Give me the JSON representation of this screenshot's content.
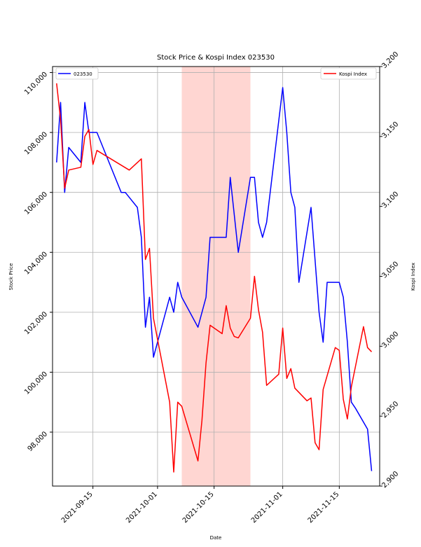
{
  "chart_data": {
    "type": "line",
    "title": "Stock Price & Kospi Index 023530",
    "xlabel": "Date",
    "ylabel_left": "Stock Price",
    "ylabel_right": "Kospi Index",
    "xlim": [
      "2021-09-05",
      "2021-11-25"
    ],
    "ylim_left": [
      96200,
      110200
    ],
    "ylim_right": [
      2900,
      3200
    ],
    "x_ticks": [
      {
        "date": "2021-09-15",
        "label": "2021-09-15"
      },
      {
        "date": "2021-10-01",
        "label": "2021-10-01"
      },
      {
        "date": "2021-10-15",
        "label": "2021-10-15"
      },
      {
        "date": "2021-11-01",
        "label": "2021-11-01"
      },
      {
        "date": "2021-11-15",
        "label": "2021-11-15"
      }
    ],
    "y_ticks_left": [
      {
        "value": 98000,
        "label": "98,000"
      },
      {
        "value": 100000,
        "label": "100,000"
      },
      {
        "value": 102000,
        "label": "102,000"
      },
      {
        "value": 104000,
        "label": "104,000"
      },
      {
        "value": 106000,
        "label": "106,000"
      },
      {
        "value": 108000,
        "label": "108,000"
      },
      {
        "value": 110000,
        "label": "110,000"
      }
    ],
    "y_ticks_right": [
      {
        "value": 2900,
        "label": "2,900"
      },
      {
        "value": 2950,
        "label": "2,950"
      },
      {
        "value": 3000,
        "label": "3,000"
      },
      {
        "value": 3050,
        "label": "3,050"
      },
      {
        "value": 3100,
        "label": "3,100"
      },
      {
        "value": 3150,
        "label": "3,150"
      },
      {
        "value": 3200,
        "label": "3,200"
      }
    ],
    "grid": true,
    "shaded_span": {
      "start": "2021-10-07",
      "end": "2021-10-24",
      "color": "#ffd6d2"
    },
    "series": [
      {
        "name": "023530",
        "axis": "left",
        "color": "#0000ff",
        "legend_position": "upper-left",
        "points": [
          [
            "2021-09-06",
            107000
          ],
          [
            "2021-09-07",
            109000
          ],
          [
            "2021-09-08",
            106000
          ],
          [
            "2021-09-09",
            107500
          ],
          [
            "2021-09-12",
            107000
          ],
          [
            "2021-09-13",
            109000
          ],
          [
            "2021-09-14",
            108000
          ],
          [
            "2021-09-16",
            108000
          ],
          [
            "2021-09-22",
            106000
          ],
          [
            "2021-09-23",
            106000
          ],
          [
            "2021-09-26",
            105500
          ],
          [
            "2021-09-27",
            104500
          ],
          [
            "2021-09-28",
            101500
          ],
          [
            "2021-09-29",
            102500
          ],
          [
            "2021-09-30",
            100500
          ],
          [
            "2021-10-04",
            102500
          ],
          [
            "2021-10-05",
            102000
          ],
          [
            "2021-10-06",
            103000
          ],
          [
            "2021-10-07",
            102500
          ],
          [
            "2021-10-11",
            101500
          ],
          [
            "2021-10-13",
            102500
          ],
          [
            "2021-10-14",
            104500
          ],
          [
            "2021-10-18",
            104500
          ],
          [
            "2021-10-19",
            106500
          ],
          [
            "2021-10-21",
            104000
          ],
          [
            "2021-10-24",
            106500
          ],
          [
            "2021-10-25",
            106500
          ],
          [
            "2021-10-26",
            105000
          ],
          [
            "2021-10-27",
            104500
          ],
          [
            "2021-10-28",
            105000
          ],
          [
            "2021-11-01",
            109500
          ],
          [
            "2021-11-02",
            108000
          ],
          [
            "2021-11-03",
            106000
          ],
          [
            "2021-11-04",
            105500
          ],
          [
            "2021-11-05",
            103000
          ],
          [
            "2021-11-08",
            105500
          ],
          [
            "2021-11-10",
            102000
          ],
          [
            "2021-11-11",
            101000
          ],
          [
            "2021-11-12",
            103000
          ],
          [
            "2021-11-15",
            103000
          ],
          [
            "2021-11-16",
            102500
          ],
          [
            "2021-11-17",
            101000
          ],
          [
            "2021-11-18",
            99000
          ],
          [
            "2021-11-19",
            98800
          ],
          [
            "2021-11-22",
            98100
          ],
          [
            "2021-11-23",
            96700
          ]
        ]
      },
      {
        "name": "Kospi Index",
        "axis": "right",
        "color": "#ff0000",
        "legend_position": "upper-right",
        "points": [
          [
            "2021-09-06",
            3188
          ],
          [
            "2021-09-07",
            3162
          ],
          [
            "2021-09-08",
            3113
          ],
          [
            "2021-09-09",
            3126
          ],
          [
            "2021-09-12",
            3128
          ],
          [
            "2021-09-13",
            3150
          ],
          [
            "2021-09-14",
            3155
          ],
          [
            "2021-09-15",
            3130
          ],
          [
            "2021-09-16",
            3140
          ],
          [
            "2021-09-24",
            3126
          ],
          [
            "2021-09-27",
            3134
          ],
          [
            "2021-09-28",
            3062
          ],
          [
            "2021-09-29",
            3070
          ],
          [
            "2021-09-30",
            3020
          ],
          [
            "2021-10-04",
            2960
          ],
          [
            "2021-10-05",
            2910
          ],
          [
            "2021-10-06",
            2960
          ],
          [
            "2021-10-07",
            2957
          ],
          [
            "2021-10-11",
            2918
          ],
          [
            "2021-10-12",
            2947
          ],
          [
            "2021-10-13",
            2988
          ],
          [
            "2021-10-14",
            3015
          ],
          [
            "2021-10-17",
            3009
          ],
          [
            "2021-10-18",
            3029
          ],
          [
            "2021-10-19",
            3013
          ],
          [
            "2021-10-20",
            3007
          ],
          [
            "2021-10-21",
            3006
          ],
          [
            "2021-10-24",
            3020
          ],
          [
            "2021-10-25",
            3050
          ],
          [
            "2021-10-26",
            3026
          ],
          [
            "2021-10-27",
            3010
          ],
          [
            "2021-10-28",
            2972
          ],
          [
            "2021-10-31",
            2980
          ],
          [
            "2021-11-01",
            3013
          ],
          [
            "2021-11-02",
            2977
          ],
          [
            "2021-11-03",
            2984
          ],
          [
            "2021-11-04",
            2970
          ],
          [
            "2021-11-07",
            2961
          ],
          [
            "2021-11-08",
            2963
          ],
          [
            "2021-11-09",
            2931
          ],
          [
            "2021-11-10",
            2926
          ],
          [
            "2021-11-11",
            2969
          ],
          [
            "2021-11-14",
            2999
          ],
          [
            "2021-11-15",
            2997
          ],
          [
            "2021-11-16",
            2962
          ],
          [
            "2021-11-17",
            2948
          ],
          [
            "2021-11-18",
            2971
          ],
          [
            "2021-11-21",
            3014
          ],
          [
            "2021-11-22",
            2999
          ],
          [
            "2021-11-23",
            2996
          ]
        ]
      }
    ]
  }
}
